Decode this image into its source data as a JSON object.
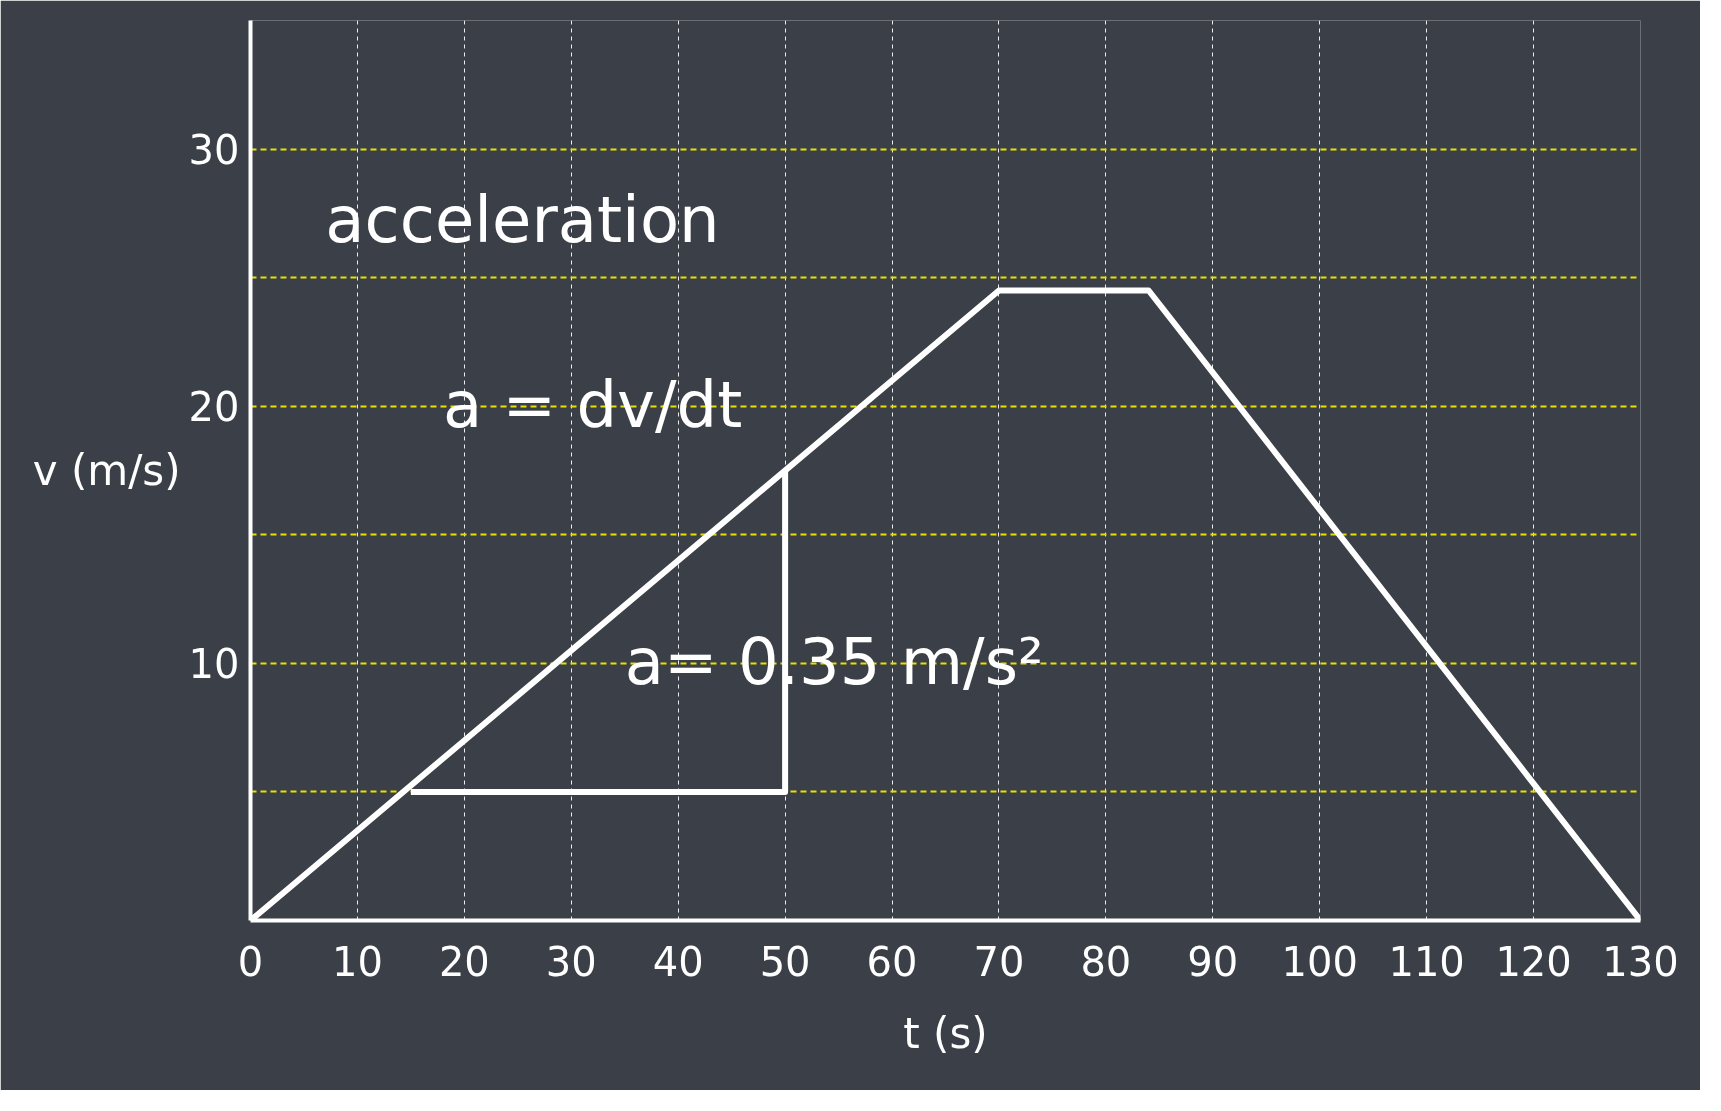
{
  "chart_data": {
    "type": "line",
    "xlabel": "t (s)",
    "ylabel": "v (m/s)",
    "xlim": [
      0,
      130
    ],
    "ylim": [
      0,
      35
    ],
    "xticks": [
      0,
      10,
      20,
      30,
      40,
      50,
      60,
      70,
      80,
      90,
      100,
      110,
      120,
      130
    ],
    "yticks": [
      {
        "value": 5,
        "label": null
      },
      10,
      {
        "value": 15,
        "label": null
      },
      20,
      {
        "value": 25,
        "label": null
      },
      30,
      {
        "value": 35,
        "label": null
      }
    ],
    "grid": true,
    "marker": "none",
    "line_style": "solid",
    "series": [
      {
        "color": "#ffffff",
        "x": [
          0,
          70,
          84,
          130
        ],
        "values": [
          0,
          24.5,
          24.5,
          0
        ]
      },
      {
        "color": "#ffffff",
        "x": [
          15,
          50,
          50
        ],
        "values": [
          5,
          5,
          17.5
        ]
      }
    ],
    "annotations": [
      "acceleration",
      "a = dv/dt",
      "a= 0.35 m/s²"
    ]
  }
}
